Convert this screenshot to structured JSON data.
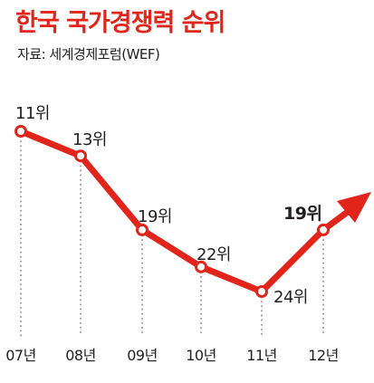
{
  "title": "한국 국가경쟁력 순위",
  "source": "자료: 세계경제포럼(WEF)",
  "colors": {
    "accent": "#e1251b",
    "text": "#231f20",
    "guide": "#9a9a9a"
  },
  "chart_data": {
    "type": "line",
    "title": "한국 국가경쟁력 순위",
    "categories": [
      "07년",
      "08년",
      "09년",
      "10년",
      "11년",
      "12년"
    ],
    "values": [
      11,
      13,
      19,
      22,
      24,
      19
    ],
    "data_labels": [
      "11위",
      "13위",
      "19위",
      "22위",
      "24위",
      "19위"
    ],
    "y_inverted": true,
    "ylim": [
      11,
      24
    ],
    "grid": false,
    "legend": "none",
    "trend_arrow": "up"
  }
}
